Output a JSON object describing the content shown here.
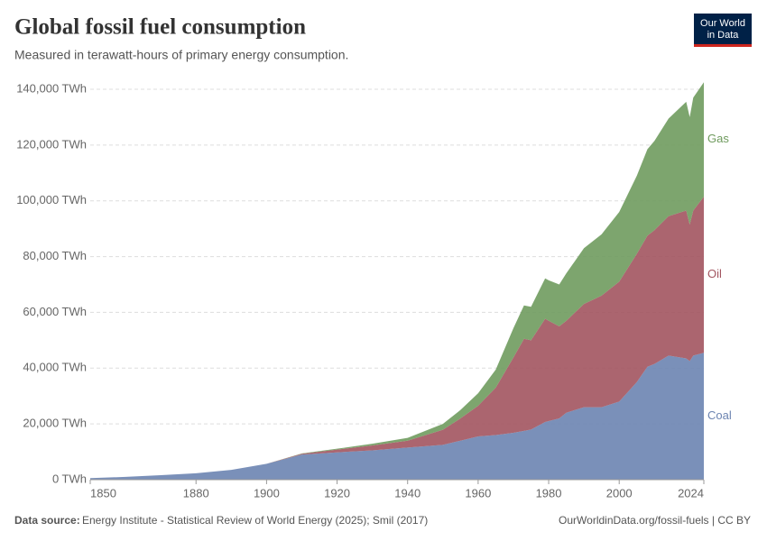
{
  "chart_data": {
    "type": "stacked_area",
    "title": "Global fossil fuel consumption",
    "subtitle": "Measured in terawatt-hours of primary energy consumption.",
    "logo": [
      "Our World",
      "in Data"
    ],
    "source_label": "Data source:",
    "source": "Energy Institute - Statistical Review of World Energy (2025); Smil (2017)",
    "url": "OurWorldinData.org/fossil-fuels | CC BY",
    "x": [
      1850,
      1860,
      1870,
      1880,
      1890,
      1900,
      1910,
      1920,
      1930,
      1940,
      1950,
      1955,
      1960,
      1965,
      1970,
      1973,
      1975,
      1979,
      1980,
      1983,
      1985,
      1990,
      1995,
      2000,
      2005,
      2008,
      2010,
      2014,
      2019,
      2020,
      2021,
      2024
    ],
    "series": [
      {
        "name": "Coal",
        "color": "#6c84b1",
        "values": [
          570,
          1000,
          1600,
          2300,
          3500,
          5700,
          9000,
          9800,
          10500,
          11500,
          12500,
          14000,
          15500,
          16000,
          16800,
          17500,
          18000,
          20700,
          21000,
          22000,
          24000,
          26000,
          26000,
          28000,
          35000,
          40500,
          41500,
          44500,
          43500,
          42500,
          44500,
          45500
        ]
      },
      {
        "name": "Oil",
        "color": "#a2545f",
        "values": [
          0,
          0,
          0,
          0,
          0,
          0,
          300,
          1000,
          1800,
          2500,
          5400,
          8000,
          11000,
          17000,
          27000,
          33000,
          32000,
          37000,
          36000,
          33000,
          33000,
          37000,
          40000,
          43000,
          46000,
          47000,
          48000,
          50000,
          53000,
          49000,
          52000,
          56000
        ]
      },
      {
        "name": "Gas",
        "color": "#6f9b5e",
        "values": [
          0,
          0,
          0,
          0,
          0,
          0,
          100,
          300,
          600,
          1000,
          2100,
          3000,
          4500,
          6500,
          10500,
          12000,
          12000,
          14500,
          14500,
          15000,
          17000,
          20000,
          22000,
          25000,
          28000,
          31000,
          32000,
          35000,
          39000,
          38500,
          40500,
          41000
        ]
      }
    ],
    "xlim": [
      1850,
      2024
    ],
    "xticks": [
      1850,
      1880,
      1900,
      1920,
      1940,
      1960,
      1980,
      2000,
      2024
    ],
    "ylim": [
      0,
      140000
    ],
    "yticks": [
      {
        "value": 0,
        "label": "0 TWh"
      },
      {
        "value": 20000,
        "label": "20,000 TWh"
      },
      {
        "value": 40000,
        "label": "40,000 TWh"
      },
      {
        "value": 60000,
        "label": "60,000 TWh"
      },
      {
        "value": 80000,
        "label": "80,000 TWh"
      },
      {
        "value": 100000,
        "label": "100,000 TWh"
      },
      {
        "value": 120000,
        "label": "120,000 TWh"
      },
      {
        "value": 140000,
        "label": "140,000 TWh"
      }
    ],
    "grid": true
  }
}
